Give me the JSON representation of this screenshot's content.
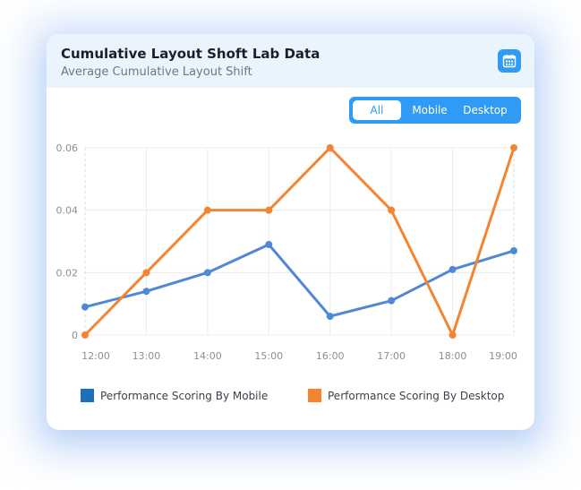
{
  "card": {
    "title": "Cumulative Layout Shoft Lab Data",
    "subtitle": "Average Cumulative Layout Shift",
    "calendar_icon": "calendar-icon"
  },
  "filter": {
    "options": [
      "All",
      "Mobile",
      "Desktop"
    ],
    "selected": "All"
  },
  "colors": {
    "accent": "#2f9bf5",
    "mobile": "#5087d6",
    "desktop": "#f58431",
    "legend_mobile": "#1f6fb8",
    "legend_desktop": "#f58431"
  },
  "chart_data": {
    "type": "line",
    "categories": [
      "12:00",
      "13:00",
      "14:00",
      "15:00",
      "16:00",
      "17:00",
      "18:00",
      "19:00"
    ],
    "series": [
      {
        "name": "Performance Scoring By Mobile",
        "values": [
          0.009,
          0.014,
          0.02,
          0.029,
          0.006,
          0.011,
          0.021,
          0.027
        ]
      },
      {
        "name": "Performance Scoring By Desktop",
        "values": [
          0,
          0.02,
          0.04,
          0.04,
          0.06,
          0.04,
          0,
          0.06
        ]
      }
    ],
    "y_ticks": [
      "0",
      "0.02",
      "0.04",
      "0.06"
    ],
    "ylim": [
      0,
      0.06
    ],
    "grid": true,
    "legend_position": "bottom"
  }
}
